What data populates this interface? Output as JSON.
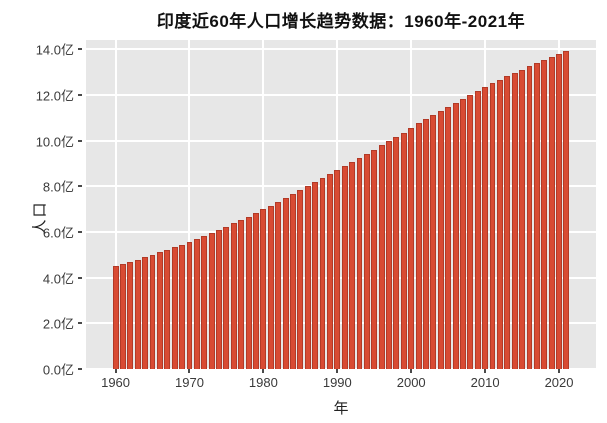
{
  "chart_data": {
    "type": "bar",
    "title": "印度近60年人口增长趋势数据：1960年-2021年",
    "xlabel": "年",
    "ylabel": "人口",
    "unit": "亿",
    "x": [
      1960,
      1961,
      1962,
      1963,
      1964,
      1965,
      1966,
      1967,
      1968,
      1969,
      1970,
      1971,
      1972,
      1973,
      1974,
      1975,
      1976,
      1977,
      1978,
      1979,
      1980,
      1981,
      1982,
      1983,
      1984,
      1985,
      1986,
      1987,
      1988,
      1989,
      1990,
      1991,
      1992,
      1993,
      1994,
      1995,
      1996,
      1997,
      1998,
      1999,
      2000,
      2001,
      2002,
      2003,
      2004,
      2005,
      2006,
      2007,
      2008,
      2009,
      2010,
      2011,
      2012,
      2013,
      2014,
      2015,
      2016,
      2017,
      2018,
      2019,
      2020,
      2021
    ],
    "values": [
      4.51,
      4.6,
      4.69,
      4.79,
      4.89,
      4.99,
      5.1,
      5.2,
      5.32,
      5.43,
      5.55,
      5.68,
      5.81,
      5.95,
      6.09,
      6.23,
      6.38,
      6.52,
      6.67,
      6.83,
      6.99,
      7.15,
      7.31,
      7.48,
      7.65,
      7.82,
      8.0,
      8.17,
      8.35,
      8.53,
      8.7,
      8.88,
      9.06,
      9.24,
      9.42,
      9.6,
      9.79,
      9.97,
      10.15,
      10.34,
      10.57,
      10.75,
      10.93,
      11.11,
      11.29,
      11.47,
      11.65,
      11.83,
      12.01,
      12.18,
      12.34,
      12.5,
      12.65,
      12.81,
      12.96,
      13.1,
      13.25,
      13.39,
      13.53,
      13.66,
      13.8,
      13.93
    ],
    "yticks": [
      0,
      2,
      4,
      6,
      8,
      10,
      12,
      14
    ],
    "ytick_labels": [
      "0.0亿",
      "2.0亿",
      "4.0亿",
      "6.0亿",
      "8.0亿",
      "10.0亿",
      "12.0亿",
      "14.0亿"
    ],
    "xticks": [
      1960,
      1970,
      1980,
      1990,
      2000,
      2010,
      2020
    ],
    "xtick_labels": [
      "1960",
      "1970",
      "1980",
      "1990",
      "2000",
      "2010",
      "2020"
    ],
    "ylim": [
      0,
      14.4
    ],
    "xlim": [
      1956,
      2025
    ],
    "bar_width_years": 0.8,
    "grid": "on",
    "legend": "none",
    "bar_color": "#d84b33",
    "bar_edge_color": "#b23a27",
    "plot_bg_color": "#e7e7e7",
    "grid_color": "#ffffff",
    "figure_bg_color": "#ffffff"
  }
}
